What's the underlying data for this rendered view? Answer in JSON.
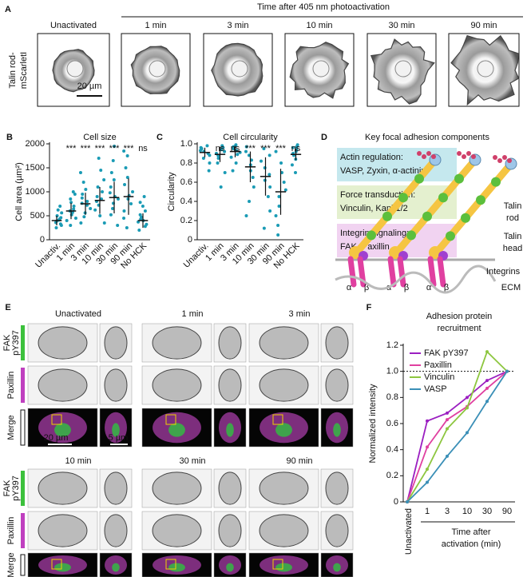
{
  "panel_a": {
    "letter": "A",
    "header": "Time after 405 nm photoactivation",
    "columns": [
      "Unactivated",
      "1 min",
      "3 min",
      "10 min",
      "30 min",
      "90 min"
    ],
    "row_label": [
      "Talin rod-",
      "mScarletI"
    ],
    "scale_bar": "20 µm"
  },
  "panel_d": {
    "letter": "D",
    "title": "Key focal adhesion components",
    "boxes": [
      {
        "lines": [
          "Actin regulation:",
          "VASP, Zyxin, α-actinin"
        ]
      },
      {
        "lines": [
          "Force transduction:",
          "Vinculin, Kank1/2"
        ]
      },
      {
        "lines": [
          "Integrin signaling:",
          "FAK, Paxillin"
        ]
      }
    ],
    "labels": {
      "talin_rod": [
        "Talin",
        "rod"
      ],
      "talin_head": [
        "Talin",
        "head"
      ],
      "integrins": "Integrins",
      "ecm": "ECM"
    },
    "integrin_subunits": [
      "α",
      "β"
    ]
  },
  "panel_e": {
    "letter": "E",
    "columns": [
      "Unactivated",
      "1 min",
      "3 min",
      "10 min",
      "30 min",
      "90 min"
    ],
    "rows": [
      [
        "FAK",
        "pY397"
      ],
      [
        "Paxillin"
      ],
      [
        "Merge"
      ]
    ],
    "scale_bars": [
      "20 µm",
      "5 µm"
    ]
  },
  "chart_data": [
    {
      "type": "dot",
      "panel": "B",
      "title": "Cell size",
      "y_label": "Cell area (µm²)",
      "color": "#1a9bb5",
      "categories": [
        "Unactiv.",
        "1 min",
        "3 min",
        "10 min",
        "30 min",
        "90 min",
        "No HCK"
      ],
      "values": [
        400,
        600,
        750,
        820,
        880,
        900,
        400
      ],
      "errors": [
        100,
        170,
        230,
        280,
        330,
        380,
        150
      ],
      "significance": [
        null,
        "***",
        "***",
        "***",
        "***",
        "***",
        "ns"
      ],
      "points": [
        [
          250,
          300,
          330,
          360,
          390,
          410,
          430,
          460,
          500,
          560,
          620,
          700
        ],
        [
          300,
          400,
          450,
          520,
          570,
          600,
          640,
          700,
          780,
          850,
          950,
          1000
        ],
        [
          350,
          480,
          560,
          650,
          720,
          760,
          800,
          870,
          950,
          1050,
          1200,
          1400
        ],
        [
          350,
          500,
          620,
          720,
          800,
          850,
          900,
          1000,
          1100,
          1250,
          1450,
          1700
        ],
        [
          300,
          520,
          650,
          760,
          850,
          900,
          980,
          1100,
          1250,
          1400,
          1650,
          1950
        ],
        [
          250,
          450,
          600,
          750,
          850,
          920,
          1000,
          1150,
          1300,
          1500,
          1750,
          1850
        ],
        [
          200,
          280,
          320,
          370,
          400,
          430,
          470,
          520,
          600,
          700,
          780,
          900
        ]
      ],
      "ylim": [
        0,
        2000
      ],
      "yticks": [
        0,
        500,
        1000,
        1500,
        2000
      ]
    },
    {
      "type": "dot",
      "panel": "C",
      "title": "Cell circularity",
      "y_label": "Circularity",
      "color": "#1a9bb5",
      "categories": [
        "Unactiv.",
        "1 min",
        "3 min",
        "10 min",
        "30 min",
        "90 min",
        "No HCK"
      ],
      "values": [
        0.91,
        0.89,
        0.92,
        0.76,
        0.66,
        0.5,
        0.89
      ],
      "errors": [
        0.05,
        0.08,
        0.06,
        0.16,
        0.2,
        0.24,
        0.06
      ],
      "significance": [
        null,
        "ns",
        "ns",
        "***",
        "***",
        "***",
        "ns"
      ],
      "points": [
        [
          0.72,
          0.8,
          0.85,
          0.88,
          0.9,
          0.92,
          0.93,
          0.95,
          0.96,
          0.98
        ],
        [
          0.55,
          0.7,
          0.8,
          0.85,
          0.88,
          0.9,
          0.92,
          0.94,
          0.96,
          0.98
        ],
        [
          0.72,
          0.8,
          0.86,
          0.89,
          0.91,
          0.93,
          0.95,
          0.97,
          0.98,
          0.99
        ],
        [
          0.25,
          0.4,
          0.55,
          0.65,
          0.72,
          0.78,
          0.83,
          0.88,
          0.92,
          0.97
        ],
        [
          0.12,
          0.3,
          0.45,
          0.55,
          0.62,
          0.68,
          0.75,
          0.82,
          0.88,
          0.95
        ],
        [
          0.05,
          0.15,
          0.25,
          0.35,
          0.45,
          0.52,
          0.6,
          0.7,
          0.8,
          0.92
        ],
        [
          0.7,
          0.78,
          0.84,
          0.88,
          0.9,
          0.92,
          0.94,
          0.96,
          0.97,
          0.99
        ]
      ],
      "ylim": [
        0,
        1
      ],
      "yticks": [
        0,
        0.2,
        0.4,
        0.6,
        0.8,
        {
          "value": 1,
          "label": "1.0"
        }
      ]
    },
    {
      "type": "line",
      "panel": "F",
      "title": [
        "Adhesion protein",
        "recruitment"
      ],
      "y_label": "Normalized intensity",
      "x_label": [
        "Time after",
        "activation (min)"
      ],
      "categories": [
        "Unactivated",
        "1",
        "3",
        "10",
        "30",
        "90"
      ],
      "series": [
        {
          "name": "FAK pY397",
          "color": "#9b1fc1",
          "values": [
            0,
            0.62,
            0.68,
            0.8,
            0.93,
            1.0
          ]
        },
        {
          "name": "Paxillin",
          "color": "#e040a0",
          "values": [
            0,
            0.42,
            0.63,
            0.73,
            0.87,
            1.0
          ]
        },
        {
          "name": "Vinculin",
          "color": "#8dc63f",
          "values": [
            0,
            0.25,
            0.56,
            0.72,
            1.15,
            1.0
          ]
        },
        {
          "name": "VASP",
          "color": "#3a8fb7",
          "values": [
            0,
            0.15,
            0.35,
            0.53,
            0.77,
            1.0
          ]
        }
      ],
      "reference_line": 1,
      "ylim": [
        0,
        1.2
      ],
      "yticks": [
        0,
        0.2,
        0.4,
        0.6,
        0.8,
        {
          "value": 1,
          "label": "1.0"
        },
        1.2
      ]
    }
  ]
}
